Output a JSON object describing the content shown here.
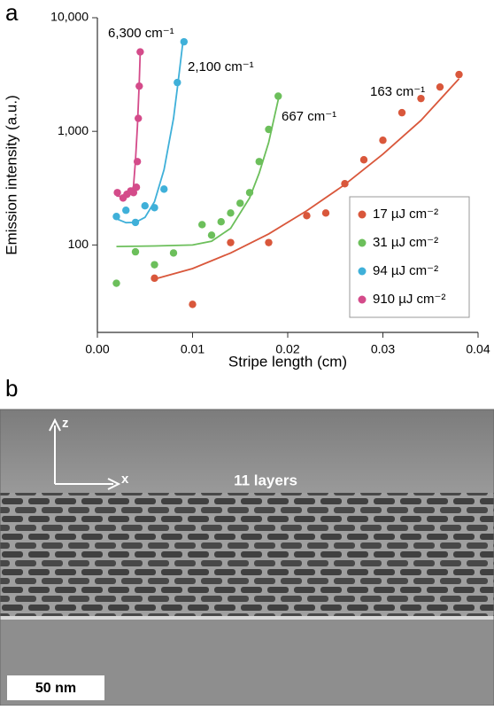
{
  "chart_data": {
    "type": "scatter",
    "panel_label": "a",
    "xlabel": "Stripe length (cm)",
    "ylabel": "Emission intensity (a.u.)",
    "xlim": [
      0,
      0.04
    ],
    "ylim": [
      17,
      10000
    ],
    "yscale": "log",
    "xticks": [
      {
        "value": 0,
        "label": "0.00"
      },
      0.01,
      0.02,
      0.03,
      0.04
    ],
    "yticks": [
      100,
      {
        "value": 1000,
        "label": "1,000"
      },
      {
        "value": 10000,
        "label": "10,000"
      }
    ],
    "legend": "lower right",
    "annotations": [
      "6,300 cm⁻¹",
      "2,100 cm⁻¹",
      "667 cm⁻¹",
      "163 cm⁻¹"
    ],
    "series": [
      {
        "name": "17 µJ cm⁻²",
        "color": "#d9573b",
        "x": [
          0.006,
          0.01,
          0.014,
          0.018,
          0.022,
          0.024,
          0.026,
          0.028,
          0.03,
          0.032,
          0.034,
          0.036,
          0.038
        ],
        "values": [
          51,
          30,
          105,
          105,
          181,
          191,
          346,
          562,
          835,
          1460,
          1945,
          2455,
          3160
        ],
        "fit": {
          "x": [
            0.006,
            0.01,
            0.014,
            0.018,
            0.022,
            0.026,
            0.03,
            0.034,
            0.038
          ],
          "values": [
            50,
            62,
            85,
            125,
            200,
            340,
            630,
            1250,
            2900
          ]
        }
      },
      {
        "name": "31 µJ cm⁻²",
        "color": "#6cbf5b",
        "x": [
          0.002,
          0.004,
          0.006,
          0.008,
          0.011,
          0.012,
          0.013,
          0.014,
          0.015,
          0.016,
          0.017,
          0.018,
          0.019
        ],
        "values": [
          46,
          87,
          67,
          85,
          151,
          122,
          160,
          191,
          233,
          289,
          542,
          1040,
          2040
        ],
        "fit": {
          "x": [
            0.002,
            0.006,
            0.01,
            0.012,
            0.014,
            0.016,
            0.017,
            0.018,
            0.019
          ],
          "values": [
            97,
            98,
            100,
            108,
            140,
            260,
            430,
            800,
            1900
          ]
        }
      },
      {
        "name": "94 µJ cm⁻²",
        "color": "#3fb0d9",
        "x": [
          0.002,
          0.003,
          0.004,
          0.005,
          0.006,
          0.007,
          0.0084,
          0.0091
        ],
        "values": [
          178,
          202,
          158,
          221,
          213,
          310,
          2690,
          6140
        ],
        "fit": {
          "x": [
            0.002,
            0.003,
            0.004,
            0.005,
            0.006,
            0.007,
            0.008,
            0.0085,
            0.009
          ],
          "values": [
            170,
            157,
            158,
            175,
            240,
            460,
            1300,
            2800,
            6300
          ]
        }
      },
      {
        "name": "910 µJ cm⁻²",
        "color": "#d44b8a",
        "x": [
          0.0021,
          0.0027,
          0.0031,
          0.0035,
          0.0038,
          0.0041,
          0.0042,
          0.0043,
          0.0044,
          0.0045
        ],
        "values": [
          289,
          259,
          279,
          299,
          289,
          322,
          542,
          1300,
          2500,
          5000
        ],
        "fit": {
          "x": [
            0.002,
            0.003,
            0.0035,
            0.0038,
            0.004,
            0.0042,
            0.0044,
            0.0045
          ],
          "values": [
            270,
            265,
            280,
            330,
            550,
            1100,
            2700,
            5000
          ]
        }
      }
    ]
  },
  "image": {
    "panel_label": "b",
    "axis_z": "z",
    "axis_x": "x",
    "caption": "11 layers",
    "scale_bar": "50 nm"
  }
}
